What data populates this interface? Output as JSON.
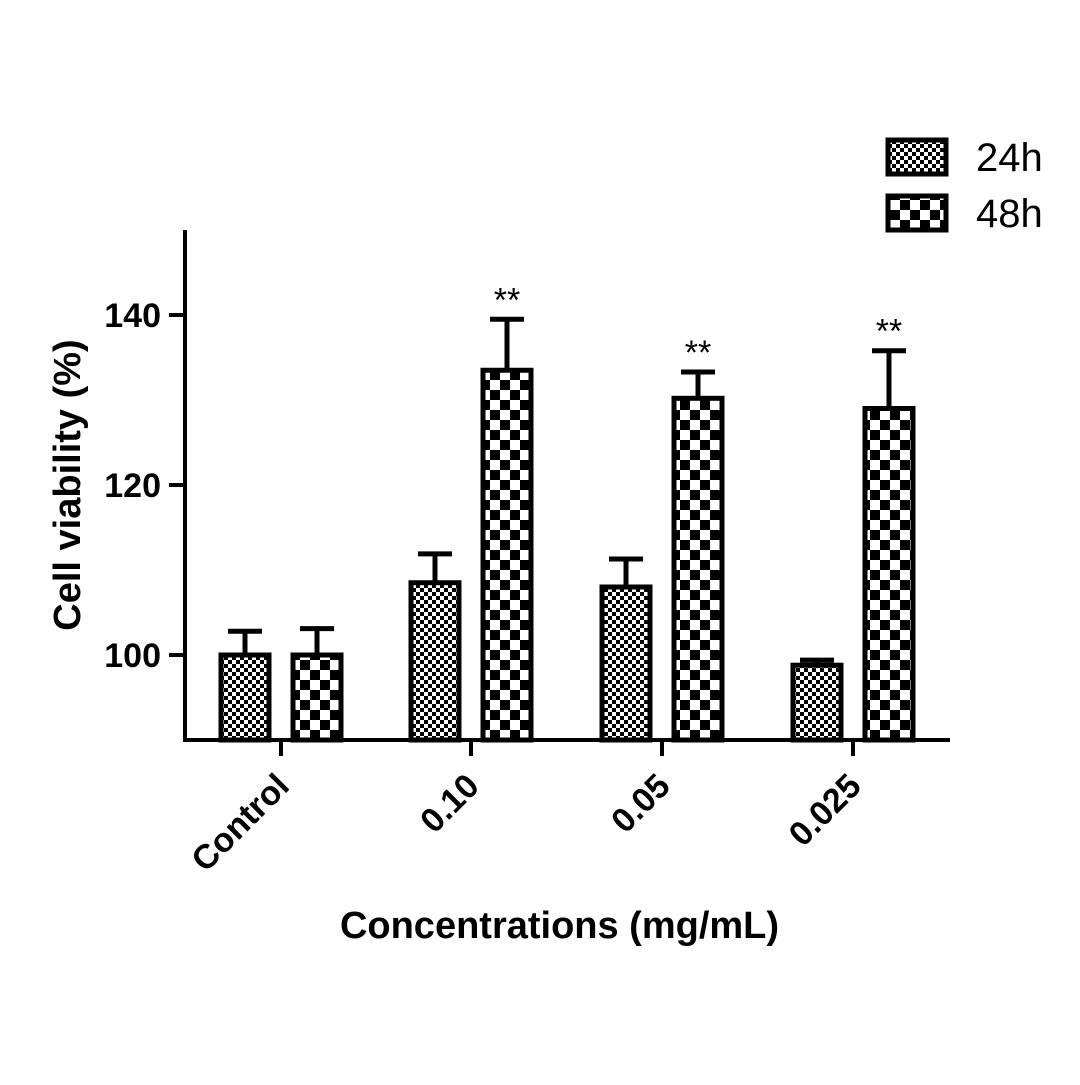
{
  "chart_data": {
    "type": "bar",
    "title": "",
    "xlabel": "Concentrations (mg/mL)",
    "ylabel": "Cell viability (%)",
    "ylim": [
      90,
      150
    ],
    "yticks": [
      100,
      120,
      140
    ],
    "categories": [
      "Control",
      "0.10",
      "0.05",
      "0.025"
    ],
    "series": [
      {
        "name": "24h",
        "pattern": "fine-checker",
        "values": [
          100,
          108.5,
          108,
          98.8
        ],
        "errors": [
          2.8,
          3.4,
          3.3,
          0.6
        ]
      },
      {
        "name": "48h",
        "pattern": "coarse-checker",
        "values": [
          100,
          133.5,
          130.2,
          129
        ],
        "errors": [
          3.1,
          6,
          3.1,
          6.8
        ]
      }
    ],
    "annotations": [
      {
        "series": "48h",
        "category": "0.10",
        "text": "**"
      },
      {
        "series": "48h",
        "category": "0.05",
        "text": "**"
      },
      {
        "series": "48h",
        "category": "0.025",
        "text": "**"
      }
    ],
    "legend_position": "top-right",
    "grid": false,
    "colors": {
      "bar_fill": "#ffffff",
      "bar_stroke": "#000000",
      "axis": "#000000"
    }
  }
}
